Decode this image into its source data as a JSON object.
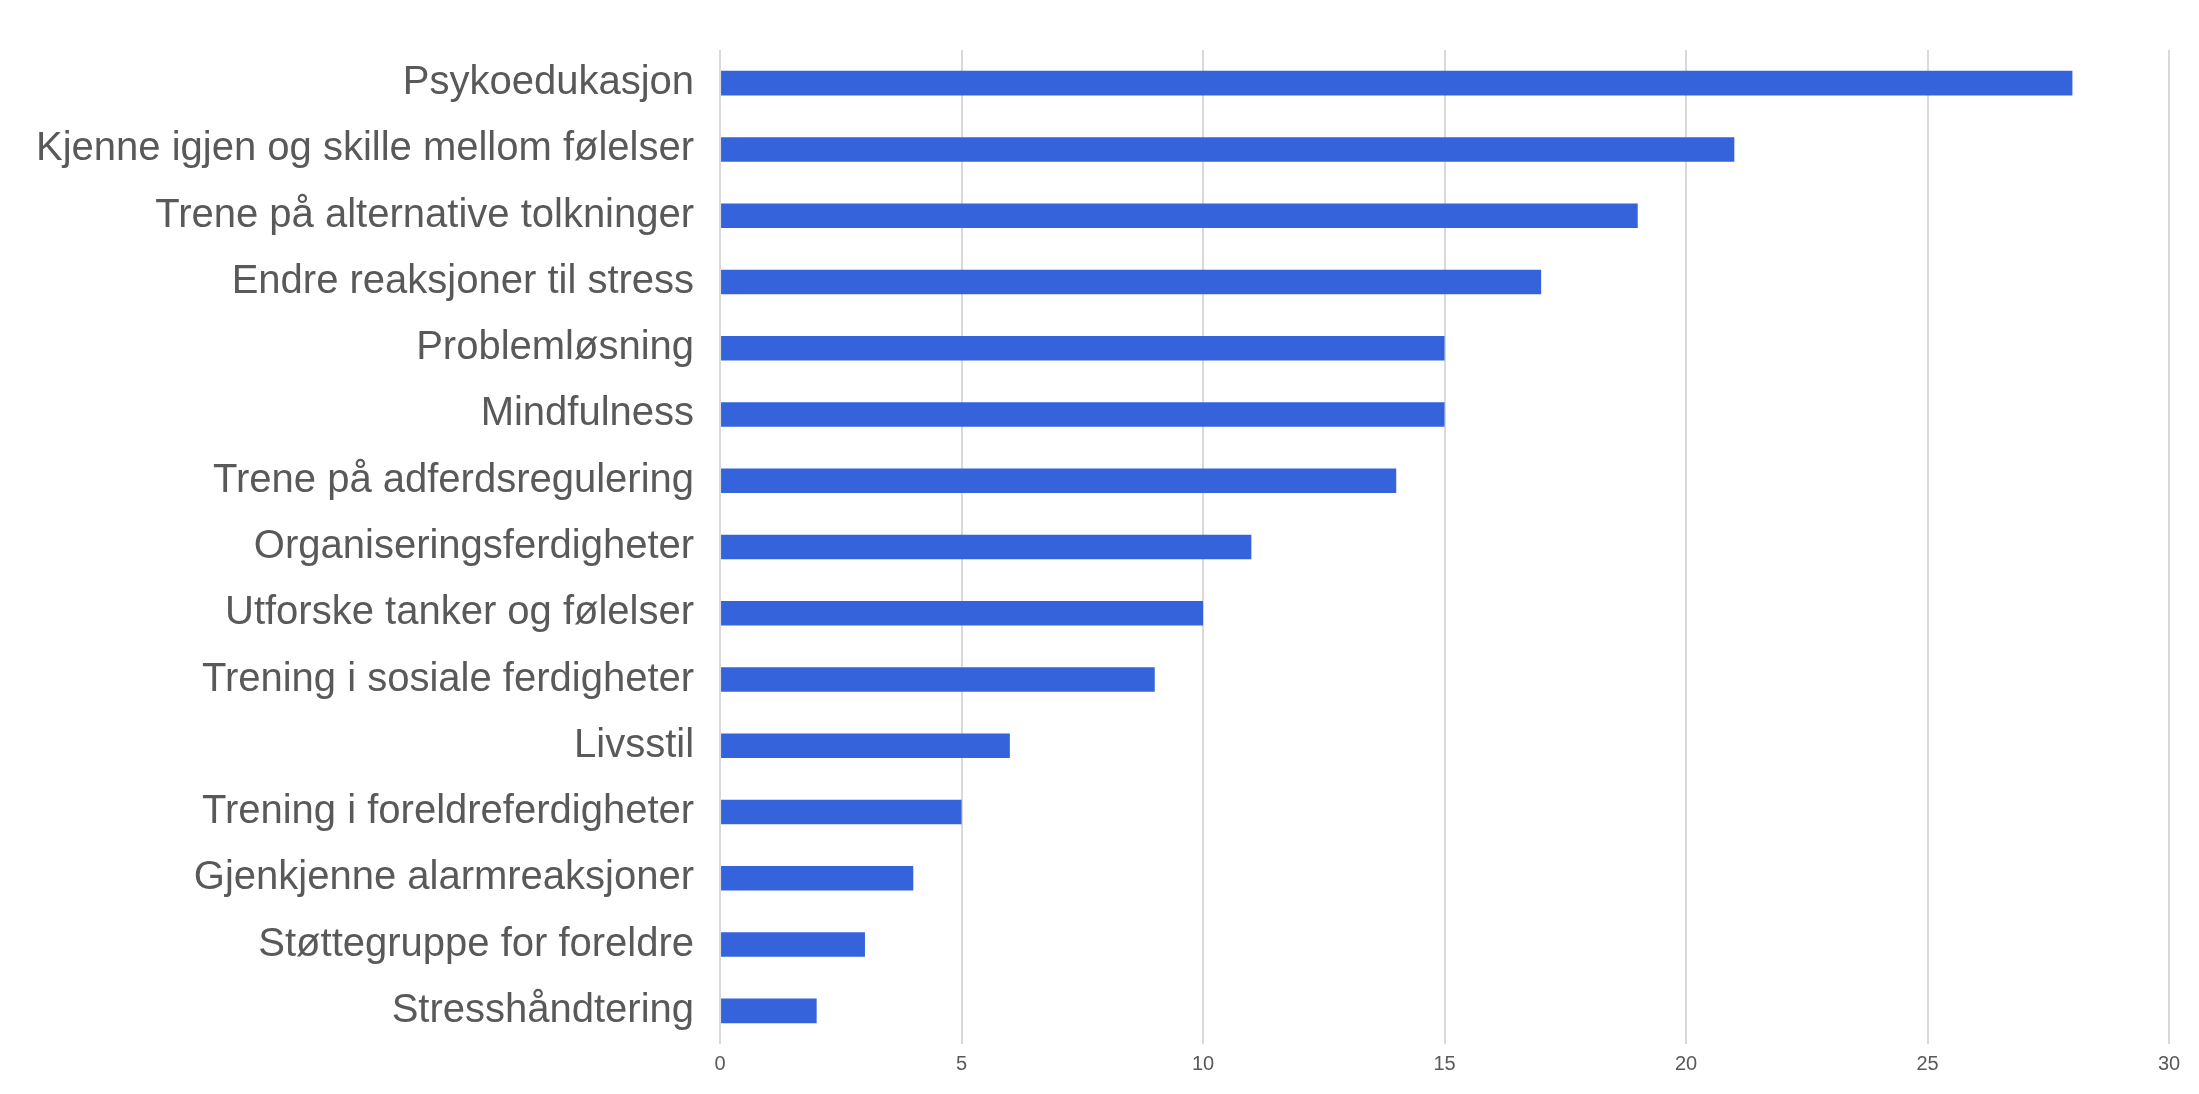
{
  "chart_data": {
    "type": "bar",
    "orientation": "horizontal",
    "categories": [
      "Psykoedukasjon",
      "Kjenne igjen og skille mellom følelser",
      "Trene på alternative tolkninger",
      "Endre reaksjoner til stress",
      "Problemløsning",
      "Mindfulness",
      "Trene på adferdsregulering",
      "Organiseringsferdigheter",
      "Utforske tanker og følelser",
      "Trening i sosiale ferdigheter",
      "Livsstil",
      "Trening i foreldreferdigheter",
      "Gjenkjenne alarmreaksjoner",
      "Støttegruppe for foreldre",
      "Stresshåndtering"
    ],
    "values": [
      28,
      21,
      19,
      17,
      15,
      15,
      14,
      11,
      10,
      9,
      6,
      5,
      4,
      3,
      2
    ],
    "color": "#3563dc",
    "xlim": [
      0,
      30
    ],
    "xticks": [
      0,
      5,
      10,
      15,
      20,
      25,
      30
    ],
    "grid": "x",
    "legend": false
  }
}
